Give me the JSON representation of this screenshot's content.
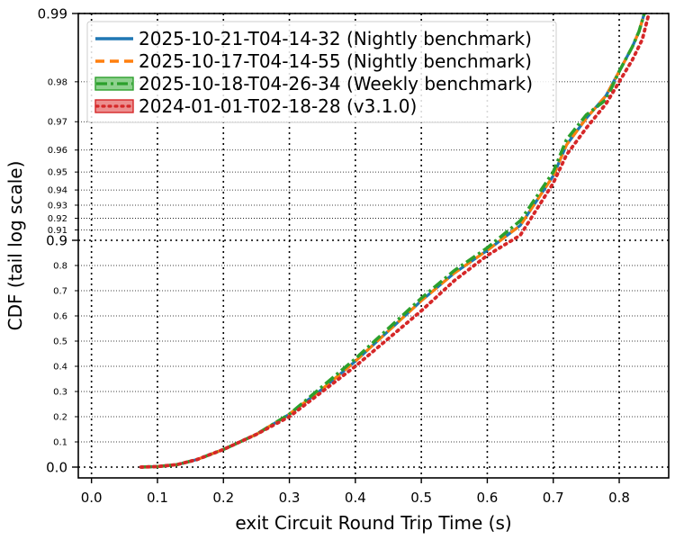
{
  "chart_data": {
    "type": "line",
    "title": "",
    "xlabel": "exit Circuit Round Trip Time (s)",
    "ylabel": "CDF (tail log scale)",
    "xlim": [
      -0.02,
      0.875
    ],
    "x_ticks": [
      0.0,
      0.1,
      0.2,
      0.3,
      0.4,
      0.5,
      0.6,
      0.7,
      0.8
    ],
    "x_tick_labels": [
      "0.0",
      "0.1",
      "0.2",
      "0.3",
      "0.4",
      "0.5",
      "0.6",
      "0.7",
      "0.8"
    ],
    "y_scale": "tail-log",
    "ylim": [
      -0.03,
      0.99
    ],
    "y_major_ticks": [
      0.0,
      0.9,
      0.99
    ],
    "y_major_labels": [
      "0.0",
      "0.9",
      "0.99"
    ],
    "y_minor_ticks": [
      0.1,
      0.2,
      0.3,
      0.4,
      0.5,
      0.6,
      0.7,
      0.8,
      0.91,
      0.92,
      0.93,
      0.94,
      0.95,
      0.96,
      0.97,
      0.98
    ],
    "y_minor_labels": [
      "0.1",
      "0.2",
      "0.3",
      "0.4",
      "0.5",
      "0.6",
      "0.7",
      "0.8",
      "0.91",
      "0.92",
      "0.93",
      "0.94",
      "0.95",
      "0.96",
      "0.97",
      "0.98"
    ],
    "grid": true,
    "legend_position": "top-left",
    "series": [
      {
        "name": "2025-10-21-T04-14-32 (Nightly benchmark)",
        "color": "#1f77b4",
        "style": "solid",
        "x": [
          0.075,
          0.1,
          0.13,
          0.16,
          0.2,
          0.25,
          0.3,
          0.35,
          0.4,
          0.45,
          0.5,
          0.55,
          0.6,
          0.65,
          0.7,
          0.72,
          0.75,
          0.78,
          0.8,
          0.82,
          0.83,
          0.838
        ],
        "y": [
          0.0,
          0.002,
          0.01,
          0.03,
          0.07,
          0.13,
          0.21,
          0.31,
          0.42,
          0.54,
          0.66,
          0.77,
          0.86,
          0.914,
          0.948,
          0.962,
          0.971,
          0.977,
          0.982,
          0.986,
          0.988,
          0.99
        ]
      },
      {
        "name": "2025-10-17-T04-14-55 (Nightly benchmark)",
        "color": "#ff7f0e",
        "style": "dashed",
        "x": [
          0.075,
          0.1,
          0.13,
          0.16,
          0.2,
          0.25,
          0.3,
          0.35,
          0.4,
          0.45,
          0.5,
          0.55,
          0.6,
          0.65,
          0.7,
          0.72,
          0.75,
          0.78,
          0.8,
          0.82,
          0.83,
          0.838
        ],
        "y": [
          0.0,
          0.002,
          0.01,
          0.03,
          0.07,
          0.13,
          0.21,
          0.31,
          0.42,
          0.54,
          0.66,
          0.77,
          0.86,
          0.914,
          0.948,
          0.962,
          0.971,
          0.977,
          0.982,
          0.986,
          0.988,
          0.99
        ]
      },
      {
        "name": "2025-10-18-T04-26-34 (Weekly benchmark)",
        "color": "#2ca02c",
        "style": "dashdot",
        "x": [
          0.075,
          0.1,
          0.13,
          0.16,
          0.2,
          0.25,
          0.3,
          0.35,
          0.4,
          0.45,
          0.5,
          0.55,
          0.6,
          0.65,
          0.7,
          0.72,
          0.75,
          0.78,
          0.8,
          0.82,
          0.83,
          0.838
        ],
        "y": [
          0.0,
          0.002,
          0.01,
          0.03,
          0.07,
          0.13,
          0.21,
          0.32,
          0.43,
          0.55,
          0.67,
          0.78,
          0.87,
          0.918,
          0.95,
          0.964,
          0.972,
          0.976,
          0.982,
          0.986,
          0.988,
          0.99
        ]
      },
      {
        "name": "2024-01-01-T02-18-28 (v3.1.0)",
        "color": "#d62728",
        "style": "dotted",
        "x": [
          0.075,
          0.1,
          0.13,
          0.16,
          0.2,
          0.25,
          0.3,
          0.35,
          0.4,
          0.45,
          0.5,
          0.55,
          0.6,
          0.65,
          0.7,
          0.72,
          0.75,
          0.78,
          0.8,
          0.82,
          0.835,
          0.845
        ],
        "y": [
          0.0,
          0.002,
          0.01,
          0.03,
          0.07,
          0.13,
          0.2,
          0.3,
          0.4,
          0.51,
          0.62,
          0.74,
          0.84,
          0.905,
          0.944,
          0.958,
          0.968,
          0.975,
          0.98,
          0.984,
          0.987,
          0.99
        ]
      }
    ]
  }
}
